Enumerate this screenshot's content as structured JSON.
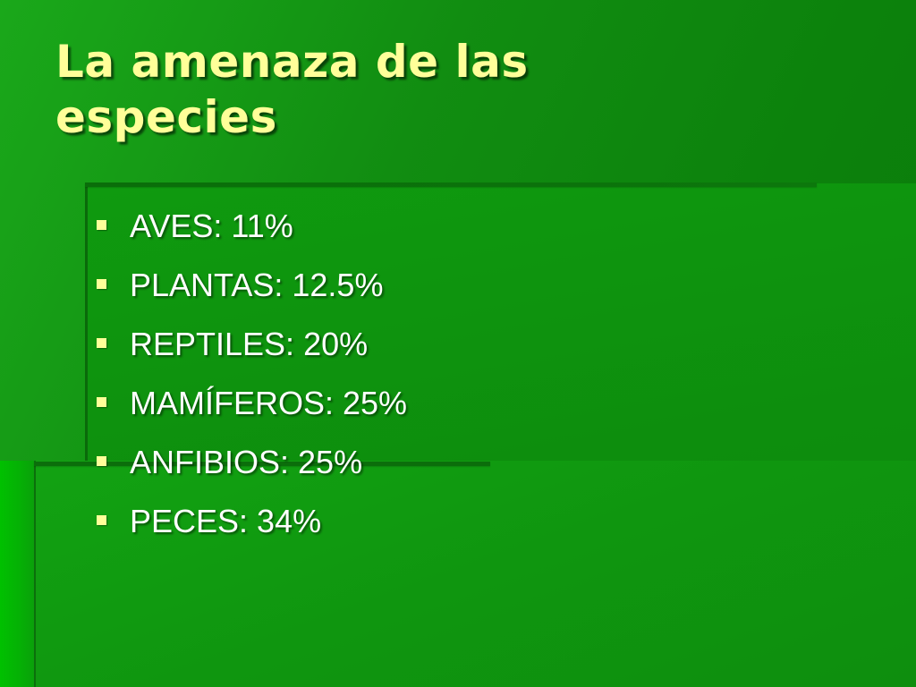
{
  "slide": {
    "title": "La amenaza de las especies",
    "bullets": [
      {
        "text": "AVES: 11%",
        "icon": "square-bullet-icon"
      },
      {
        "text": "PLANTAS: 12.5%",
        "icon": "square-bullet-icon"
      },
      {
        "text": "REPTILES: 20%",
        "icon": "square-bullet-icon"
      },
      {
        "text": "MAMÍFEROS: 25%",
        "icon": "square-bullet-icon"
      },
      {
        "text": "ANFIBIOS: 25%",
        "icon": "square-bullet-icon"
      },
      {
        "text": "PECES: 34%",
        "icon": "square-bullet-icon"
      }
    ]
  },
  "colors": {
    "background": "#0e8a0e",
    "title": "#ffff99",
    "bullet_text": "#ffffff",
    "bullet_mark": "#ffff99"
  }
}
